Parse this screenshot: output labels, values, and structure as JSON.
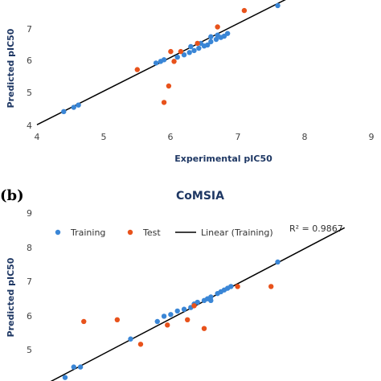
{
  "colors": {
    "training": "#3a86d6",
    "test": "#e8521b",
    "line": "#000000"
  },
  "chart_data": [
    {
      "type": "scatter",
      "panel_label": "",
      "title": "",
      "xlabel": "Experimental pIC50",
      "ylabel": "Predicted pIC50",
      "xlim": [
        4,
        9
      ],
      "ylim": [
        4,
        7.6
      ],
      "x_ticks": [
        "4",
        "5",
        "6",
        "7",
        "8",
        "9"
      ],
      "y_ticks": [
        "4",
        "5",
        "6",
        "7"
      ],
      "fit_line": {
        "x": [
          4.0,
          7.85
        ],
        "y": [
          4.02,
          7.97
        ]
      },
      "series": [
        {
          "role": "training",
          "points": [
            [
              4.4,
              4.42
            ],
            [
              4.55,
              4.55
            ],
            [
              4.62,
              4.62
            ],
            [
              5.78,
              5.9
            ],
            [
              5.85,
              5.95
            ],
            [
              5.9,
              6.0
            ],
            [
              6.1,
              6.08
            ],
            [
              6.2,
              6.15
            ],
            [
              6.28,
              6.22
            ],
            [
              6.35,
              6.28
            ],
            [
              6.42,
              6.35
            ],
            [
              6.5,
              6.42
            ],
            [
              6.55,
              6.45
            ],
            [
              6.6,
              6.55
            ],
            [
              6.68,
              6.62
            ],
            [
              6.75,
              6.68
            ],
            [
              6.8,
              6.72
            ],
            [
              6.85,
              6.8
            ],
            [
              6.6,
              6.7
            ],
            [
              6.7,
              6.75
            ],
            [
              6.3,
              6.4
            ],
            [
              6.45,
              6.5
            ],
            [
              7.6,
              7.65
            ]
          ]
        },
        {
          "role": "test",
          "points": [
            [
              5.5,
              5.7
            ],
            [
              5.9,
              4.7
            ],
            [
              5.97,
              5.2
            ],
            [
              6.0,
              6.25
            ],
            [
              6.05,
              5.95
            ],
            [
              6.15,
              6.25
            ],
            [
              6.4,
              6.5
            ],
            [
              6.7,
              7.0
            ],
            [
              7.1,
              7.5
            ]
          ]
        }
      ]
    },
    {
      "type": "scatter",
      "panel_label": "(b)",
      "title": "CoMSIA",
      "xlabel": "",
      "ylabel": "Predicted pIC50",
      "xlim": [
        4,
        9
      ],
      "ylim": [
        4.2,
        9
      ],
      "y_ticks": [
        "5",
        "6",
        "7",
        "8",
        "9"
      ],
      "legend": {
        "placement": "top",
        "items": [
          "Training",
          "Test",
          "Linear (Training)"
        ]
      },
      "r_squared": "R² = 0.9867",
      "fit_line": {
        "x": [
          4.0,
          8.6
        ],
        "y": [
          3.98,
          8.58
        ]
      },
      "series": [
        {
          "role": "training",
          "points": [
            [
              4.42,
              4.3
            ],
            [
              4.55,
              4.6
            ],
            [
              4.65,
              4.6
            ],
            [
              5.4,
              5.4
            ],
            [
              5.8,
              5.9
            ],
            [
              5.9,
              6.05
            ],
            [
              6.0,
              6.1
            ],
            [
              6.1,
              6.2
            ],
            [
              6.2,
              6.25
            ],
            [
              6.3,
              6.3
            ],
            [
              6.35,
              6.4
            ],
            [
              6.4,
              6.45
            ],
            [
              6.5,
              6.5
            ],
            [
              6.55,
              6.55
            ],
            [
              6.6,
              6.6
            ],
            [
              6.7,
              6.7
            ],
            [
              6.8,
              6.8
            ],
            [
              6.85,
              6.85
            ],
            [
              6.9,
              6.9
            ],
            [
              6.6,
              6.5
            ],
            [
              6.75,
              6.75
            ],
            [
              7.6,
              7.6
            ]
          ]
        },
        {
          "role": "test",
          "points": [
            [
              4.7,
              5.9
            ],
            [
              5.2,
              5.95
            ],
            [
              5.55,
              5.25
            ],
            [
              5.95,
              5.8
            ],
            [
              6.25,
              5.95
            ],
            [
              6.35,
              6.35
            ],
            [
              6.5,
              5.7
            ],
            [
              7.0,
              6.9
            ],
            [
              7.5,
              6.9
            ]
          ]
        }
      ]
    }
  ]
}
